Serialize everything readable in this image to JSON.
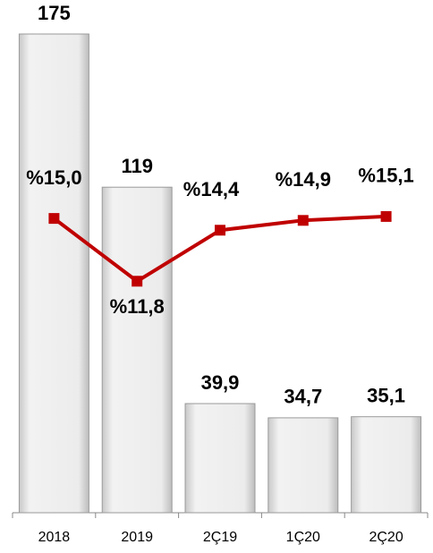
{
  "chart_data": {
    "type": "bar",
    "categories": [
      "2018",
      "2019",
      "2Ç19",
      "1Ç20",
      "2Ç20"
    ],
    "series": [
      {
        "type": "bar",
        "color": "#e6e6e6",
        "values": [
          175,
          119,
          39.9,
          34.7,
          35.1
        ],
        "value_labels": [
          "175",
          "119",
          "39,9",
          "34,7",
          "35,1"
        ]
      },
      {
        "type": "line",
        "axis": "y2",
        "color": "#c00000",
        "values": [
          15.0,
          11.8,
          14.4,
          14.9,
          15.1
        ],
        "value_labels": [
          "%15,0",
          "%11,8",
          "%14,4",
          "%14,9",
          "%15,1"
        ]
      }
    ],
    "ylim": [
      0,
      175
    ],
    "y2lim": [
      0,
      24.4
    ]
  }
}
